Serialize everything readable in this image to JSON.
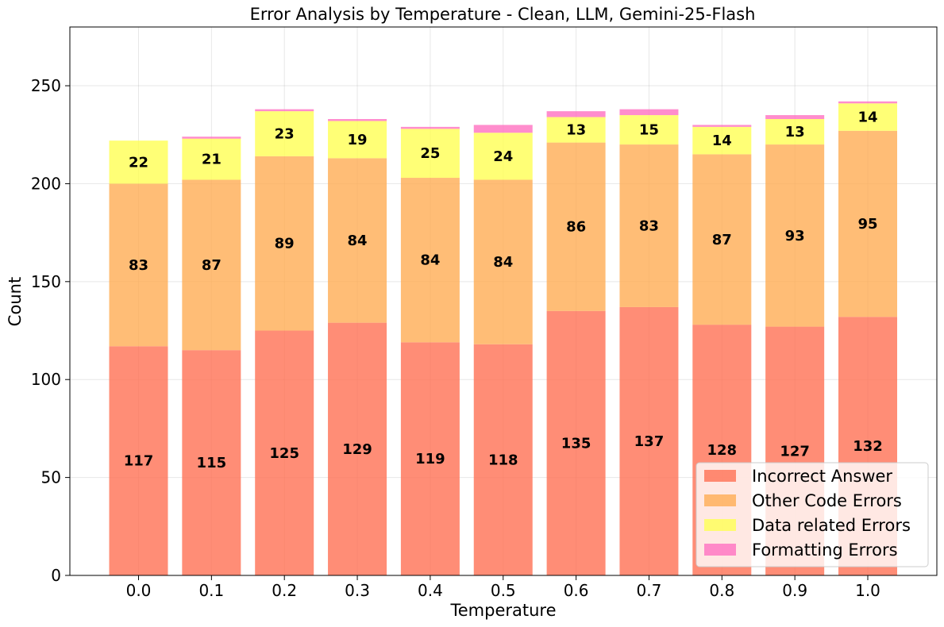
{
  "chart_data": {
    "type": "bar",
    "stacked": true,
    "title": "Error Analysis by Temperature - Clean, LLM, Gemini-25-Flash",
    "xlabel": "Temperature",
    "ylabel": "Count",
    "ylim": [
      0,
      280
    ],
    "yticks": [
      0,
      50,
      100,
      150,
      200,
      250
    ],
    "grid": true,
    "legend_position": "bottom-right",
    "categories": [
      "0.0",
      "0.1",
      "0.2",
      "0.3",
      "0.4",
      "0.5",
      "0.6",
      "0.7",
      "0.8",
      "0.9",
      "1.0"
    ],
    "series": [
      {
        "name": "Incorrect Answer",
        "color": "#ff7154",
        "values": [
          117,
          115,
          125,
          129,
          119,
          118,
          135,
          137,
          128,
          127,
          132
        ],
        "labeled": true
      },
      {
        "name": "Other Code Errors",
        "color": "#ffad54",
        "values": [
          83,
          87,
          89,
          84,
          84,
          84,
          86,
          83,
          87,
          93,
          95
        ],
        "labeled": true
      },
      {
        "name": "Data related Errors",
        "color": "#ffff54",
        "values": [
          22,
          21,
          23,
          19,
          25,
          24,
          13,
          15,
          14,
          13,
          14
        ],
        "labeled": true
      },
      {
        "name": "Formatting Errors",
        "color": "#ff70c0",
        "values": [
          0,
          1,
          1,
          1,
          1,
          4,
          3,
          3,
          1,
          2,
          1
        ],
        "labeled": false
      }
    ]
  }
}
